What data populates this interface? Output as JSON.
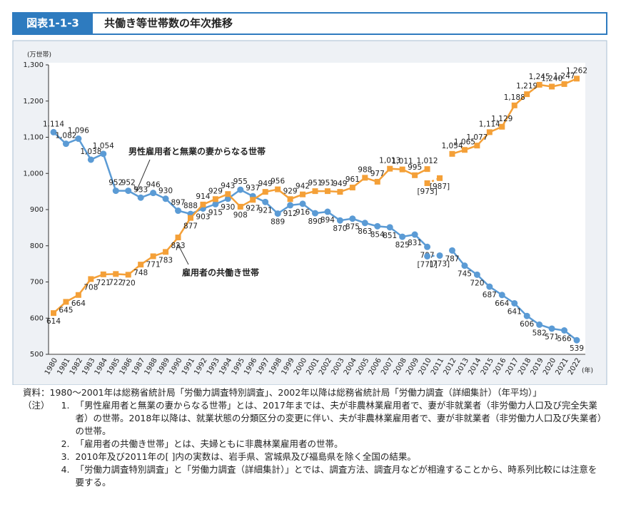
{
  "header": {
    "label": "図表1-1-3",
    "title": "共働き等世帯数の年次推移"
  },
  "chart_data": {
    "type": "line",
    "y_unit": "(万世帯)",
    "x_unit": "(年)",
    "categories": [
      "1980",
      "1981",
      "1982",
      "1983",
      "1984",
      "1985",
      "1986",
      "1987",
      "1988",
      "1989",
      "1990",
      "1991",
      "1992",
      "1993",
      "1994",
      "1995",
      "1996",
      "1997",
      "1998",
      "1999",
      "2000",
      "2001",
      "2002",
      "2003",
      "2004",
      "2005",
      "2006",
      "2007",
      "2008",
      "2009",
      "2010",
      "2011",
      "2012",
      "2013",
      "2014",
      "2015",
      "2016",
      "2017",
      "2018",
      "2019",
      "2020",
      "2021",
      "2022"
    ],
    "ylim": [
      500,
      1300
    ],
    "yticks": [
      500,
      600,
      700,
      800,
      900,
      {
        "value": 1000,
        "label": "1,000"
      },
      {
        "value": 1100,
        "label": "1,100"
      },
      {
        "value": 1200,
        "label": "1,200"
      },
      {
        "value": 1300,
        "label": "1,300"
      }
    ],
    "grid": false,
    "series": [
      {
        "color": "#5b9bd5",
        "marker": "circle",
        "dashed": false,
        "values": [
          1114,
          1082,
          1096,
          1038,
          1054,
          952,
          952,
          933,
          946,
          930,
          897,
          888,
          903,
          915,
          930,
          955,
          937,
          921,
          889,
          912,
          916,
          890,
          894,
          870,
          875,
          863,
          854,
          851,
          825,
          831,
          797,
          null,
          787,
          745,
          720,
          687,
          664,
          641,
          606,
          582,
          571,
          566,
          539
        ],
        "value_labels": [
          "1,114",
          "1,082",
          "1,096",
          "1,038",
          "1,054",
          "952",
          "952",
          "933",
          "946",
          "930",
          "897",
          "888",
          "903",
          "915",
          "930",
          "955",
          "937",
          "921",
          "889",
          "912",
          "916",
          "890",
          "894",
          "870",
          "875",
          "863",
          "854",
          "851",
          "825",
          "831",
          "797",
          null,
          "787",
          "745",
          "720",
          "687",
          "664",
          "641",
          "606",
          "582",
          "571",
          "566",
          "539"
        ]
      },
      {
        "color": "#f4a038",
        "marker": "square",
        "dashed": false,
        "values": [
          614,
          645,
          664,
          708,
          721,
          722,
          720,
          748,
          771,
          783,
          823,
          877,
          914,
          929,
          943,
          908,
          927,
          949,
          956,
          929,
          942,
          951,
          951,
          949,
          961,
          988,
          977,
          1013,
          1011,
          995,
          1012,
          null,
          1054,
          1065,
          1077,
          1114,
          1129,
          1188,
          1219,
          1245,
          1240,
          1247,
          1262
        ],
        "value_labels": [
          "614",
          "645",
          "664",
          "708",
          "721",
          "722",
          "720",
          "748",
          "771",
          "783",
          "823",
          "877",
          "914",
          "929",
          "943",
          "908",
          "927",
          "949",
          "956",
          "929",
          "942",
          "951",
          "951",
          "949",
          "961",
          "988",
          "977",
          "1,013",
          "1,011",
          "995",
          "1,012",
          null,
          "1,054",
          "1,065",
          "1,077",
          "1,114",
          "1,129",
          "1,188",
          "1,219",
          "1,245",
          "1,240",
          "1,247",
          "1,262"
        ]
      },
      {
        "color": "#5b9bd5",
        "marker": "circle",
        "dashed": true,
        "values": [
          null,
          null,
          null,
          null,
          null,
          null,
          null,
          null,
          null,
          null,
          null,
          null,
          null,
          null,
          null,
          null,
          null,
          null,
          null,
          null,
          null,
          null,
          null,
          null,
          null,
          null,
          null,
          null,
          null,
          null,
          771,
          773,
          null,
          null,
          null,
          null,
          null,
          null,
          null,
          null,
          null,
          null,
          null
        ],
        "value_labels": [
          null,
          null,
          null,
          null,
          null,
          null,
          null,
          null,
          null,
          null,
          null,
          null,
          null,
          null,
          null,
          null,
          null,
          null,
          null,
          null,
          null,
          null,
          null,
          null,
          null,
          null,
          null,
          null,
          null,
          null,
          "[771]",
          "[773]",
          null,
          null,
          null,
          null,
          null,
          null,
          null,
          null,
          null,
          null,
          null
        ]
      },
      {
        "color": "#f4a038",
        "marker": "square",
        "dashed": true,
        "values": [
          null,
          null,
          null,
          null,
          null,
          null,
          null,
          null,
          null,
          null,
          null,
          null,
          null,
          null,
          null,
          null,
          null,
          null,
          null,
          null,
          null,
          null,
          null,
          null,
          null,
          null,
          null,
          null,
          null,
          null,
          973,
          987,
          null,
          null,
          null,
          null,
          null,
          null,
          null,
          null,
          null,
          null,
          null
        ],
        "value_labels": [
          null,
          null,
          null,
          null,
          null,
          null,
          null,
          null,
          null,
          null,
          null,
          null,
          null,
          null,
          null,
          null,
          null,
          null,
          null,
          null,
          null,
          null,
          null,
          null,
          null,
          null,
          null,
          null,
          null,
          null,
          "[973]",
          "[987]",
          null,
          null,
          null,
          null,
          null,
          null,
          null,
          null,
          null,
          null,
          null
        ]
      }
    ],
    "annotations": [
      "男性雇用者と無業の妻からなる世帯",
      "雇用者の共働き世帯"
    ]
  },
  "notes": {
    "source_label": "資料：",
    "source": "1980～2001年は総務省統計局「労働力調査特別調査」、2002年以降は総務省統計局「労働力調査（詳細集計）（年平均）」",
    "note_label": "（注）",
    "items": [
      {
        "number": "1.",
        "text": "「男性雇用者と無業の妻からなる世帯」とは、2017年までは、夫が非農林業雇用者で、妻が非就業者（非労働力人口及び完全失業者）の世帯。2018年以降は、就業状態の分類区分の変更に伴い、夫が非農林業雇用者で、妻が非就業者（非労働力人口及び失業者）の世帯。"
      },
      {
        "number": "2.",
        "text": "「雇用者の共働き世帯」とは、夫婦ともに非農林業雇用者の世帯。"
      },
      {
        "number": "3.",
        "text": "2010年及び2011年の[ ]内の実数は、岩手県、宮城県及び福島県を除く全国の結果。"
      },
      {
        "number": "4.",
        "text": "「労働力調査特別調査」と「労働力調査（詳細集計）」とでは、調査方法、調査月などが相違することから、時系列比較には注意を要する。"
      }
    ]
  }
}
